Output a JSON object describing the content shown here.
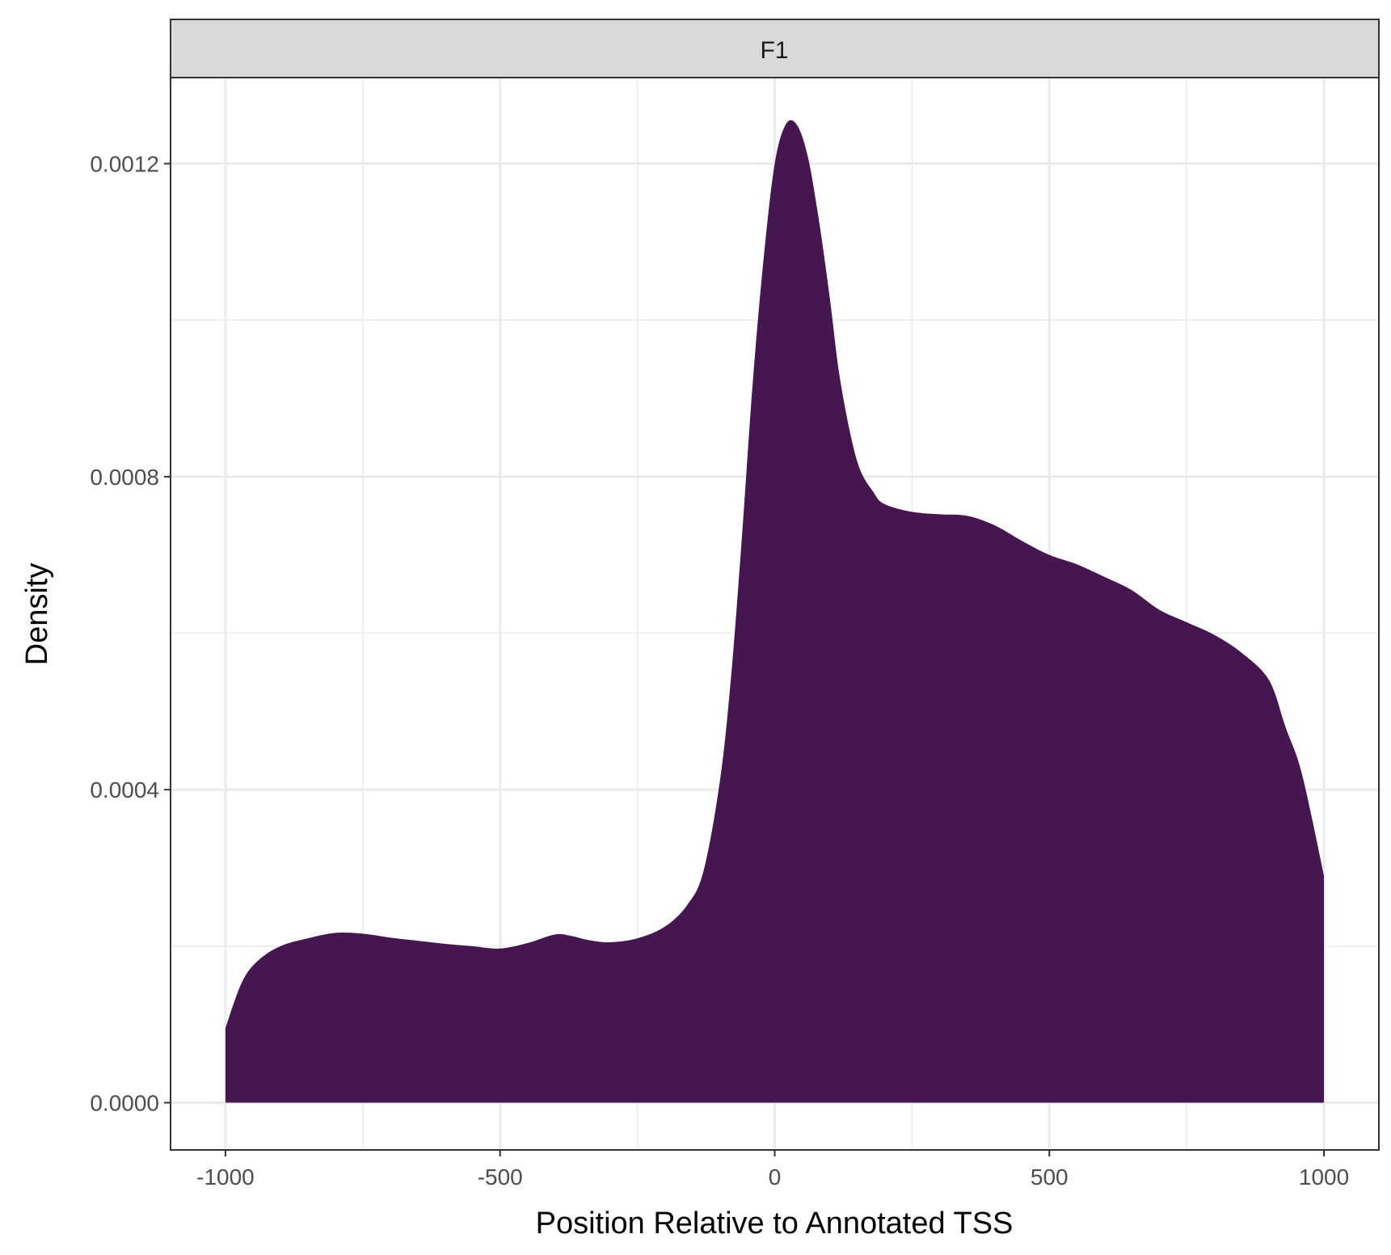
{
  "chart_data": {
    "type": "area",
    "facet": "F1",
    "xlabel": "Position Relative to Annotated TSS",
    "ylabel": "Density",
    "xlim": [
      -1100,
      1100
    ],
    "ylim": [
      -6.04e-05,
      0.00131
    ],
    "x_ticks": [
      -1000,
      -500,
      0,
      500,
      1000
    ],
    "x_tick_labels": [
      "-1000",
      "-500",
      "0",
      "500",
      "1000"
    ],
    "y_ticks": [
      0.0,
      0.0004,
      0.0008,
      0.0012
    ],
    "y_tick_labels": [
      "0.0000",
      "0.0004",
      "0.0008",
      "0.0012"
    ],
    "grid": true,
    "fill_color": "#45164f",
    "series": [
      {
        "x": [
          -1000,
          -970,
          -940,
          -900,
          -850,
          -800,
          -750,
          -700,
          -650,
          -600,
          -550,
          -500,
          -450,
          -400,
          -370,
          -340,
          -300,
          -250,
          -200,
          -160,
          -130,
          -100,
          -80,
          -60,
          -40,
          -20,
          0,
          20,
          40,
          60,
          80,
          100,
          120,
          150,
          180,
          200,
          250,
          300,
          350,
          400,
          450,
          500,
          550,
          600,
          650,
          700,
          750,
          800,
          850,
          900,
          930,
          960,
          1000
        ],
        "y": [
          9.55e-05,
          0.000154,
          0.000182,
          0.0002,
          0.00021,
          0.000217,
          0.000216,
          0.000211,
          0.000207,
          0.000203,
          0.0002,
          0.000197,
          0.000204,
          0.000215,
          0.000213,
          0.000208,
          0.000205,
          0.00021,
          0.000225,
          0.000252,
          0.000295,
          0.00041,
          0.00054,
          0.00072,
          0.00092,
          0.00108,
          0.0012,
          0.00125,
          0.00125,
          0.00121,
          0.00113,
          0.00103,
          0.00092,
          0.00082,
          0.00078,
          0.000765,
          0.000755,
          0.000752,
          0.00075,
          0.000738,
          0.000718,
          0.0007,
          0.000688,
          0.000672,
          0.000655,
          0.00063,
          0.000614,
          0.000598,
          0.000575,
          0.00054,
          0.00048,
          0.00042,
          0.00029
        ]
      }
    ]
  }
}
